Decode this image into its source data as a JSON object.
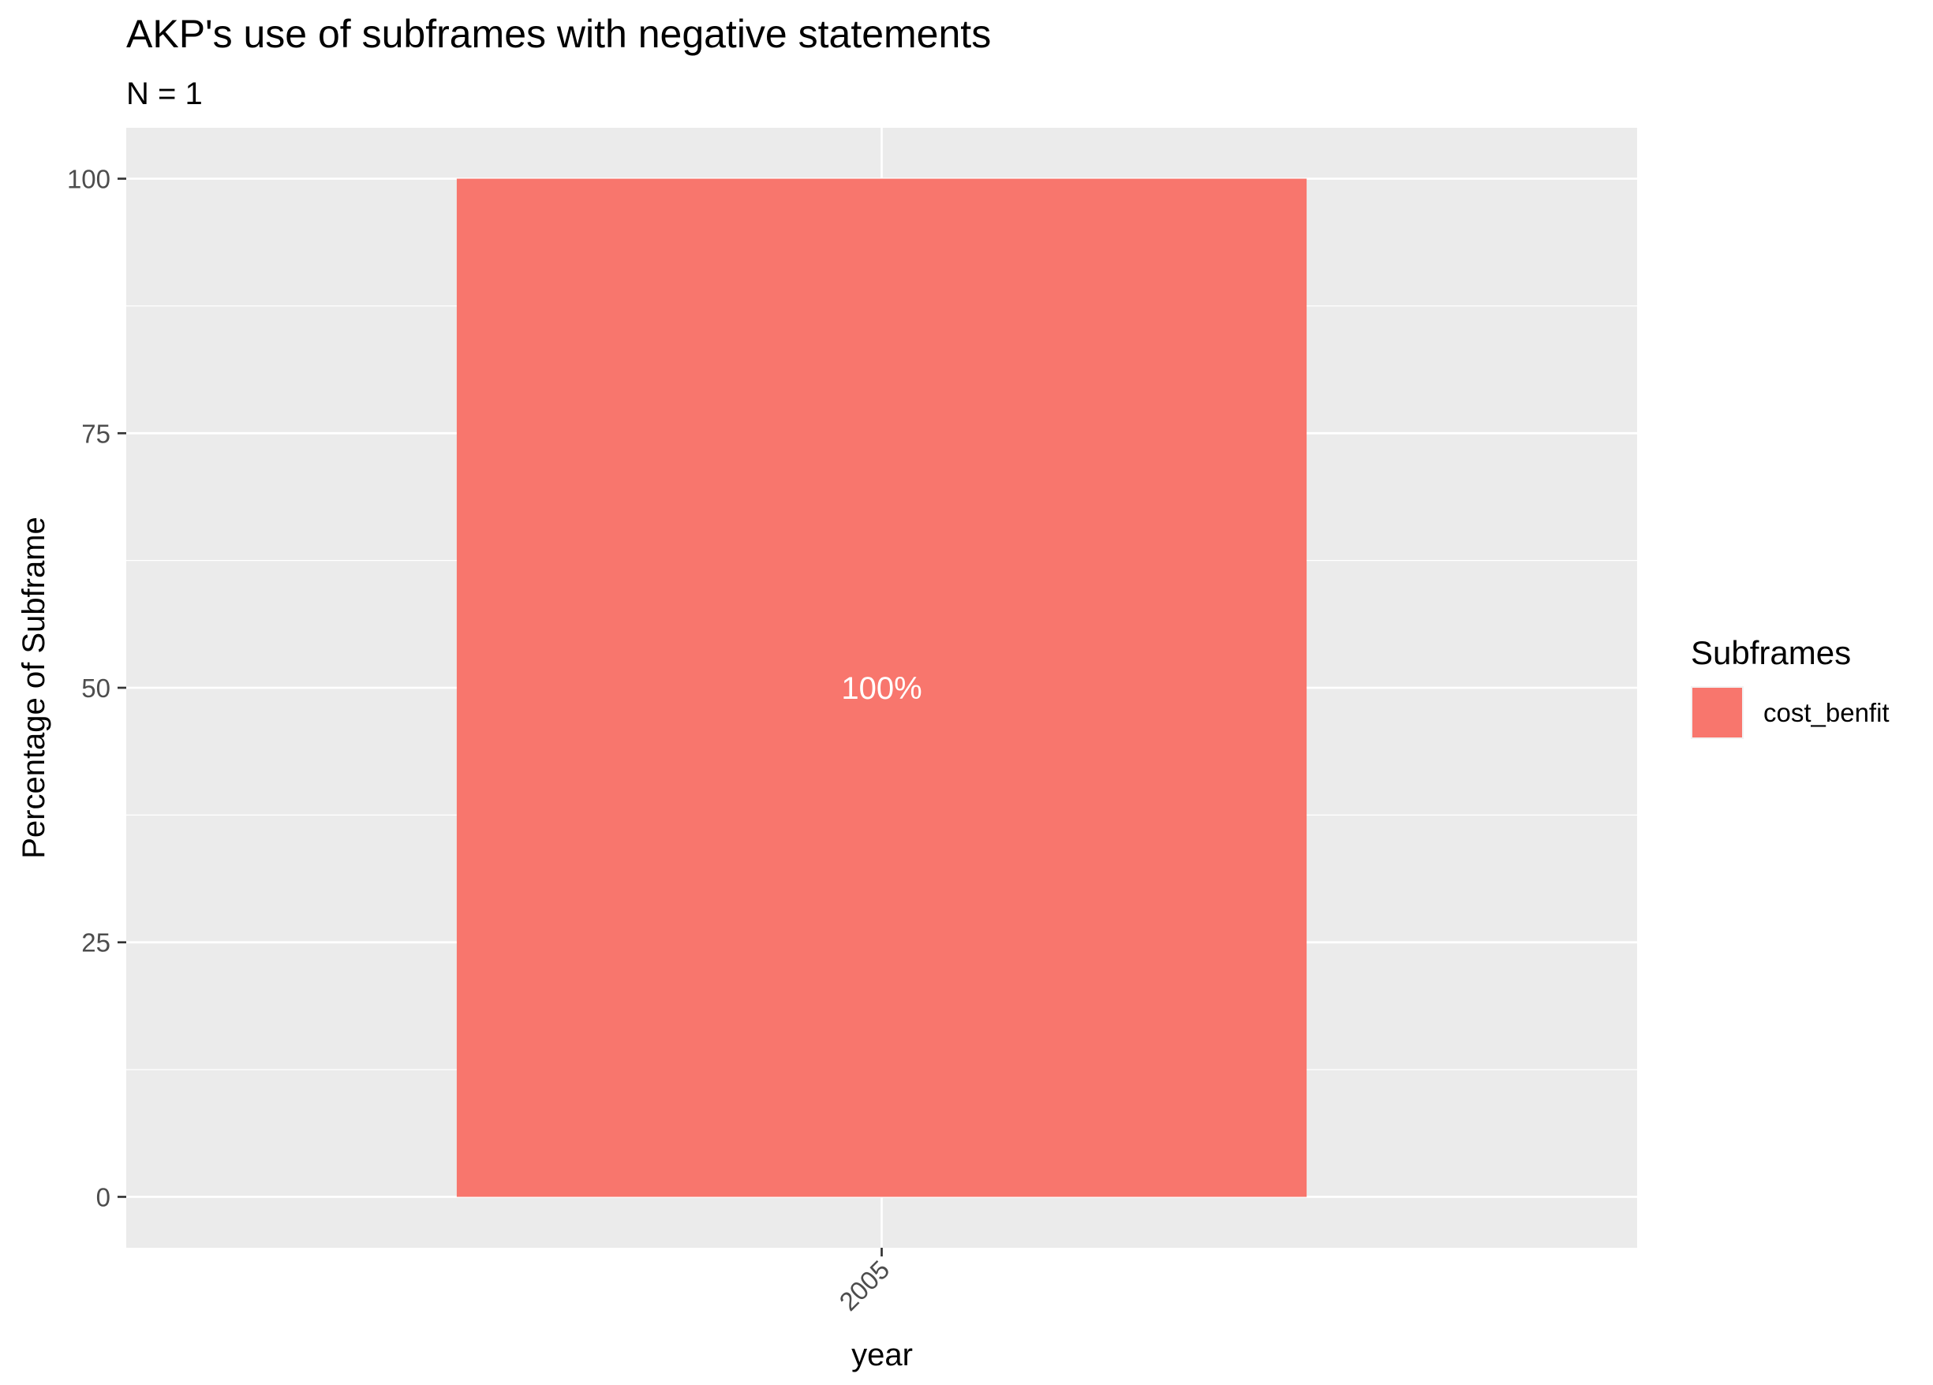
{
  "chart_data": {
    "type": "bar",
    "title": "AKP's use of subframes with negative statements",
    "subtitle": "N = 1",
    "xlabel": "year",
    "ylabel": "Percentage of Subframe",
    "categories": [
      "2005"
    ],
    "series": [
      {
        "name": "cost_benfit",
        "values": [
          100
        ],
        "color": "#F8766D"
      }
    ],
    "data_labels": [
      "100%"
    ],
    "ylim": [
      -5,
      105
    ],
    "yticks": [
      0,
      25,
      50,
      75,
      100
    ],
    "ytick_labels": [
      "0",
      "25",
      "50",
      "75",
      "100"
    ],
    "grid": true,
    "legend": {
      "title": "Subframes",
      "position": "right"
    },
    "colors": {
      "panel": "#EBEBEB",
      "grid": "#FFFFFF",
      "label_text": "#FFFFFF"
    }
  }
}
